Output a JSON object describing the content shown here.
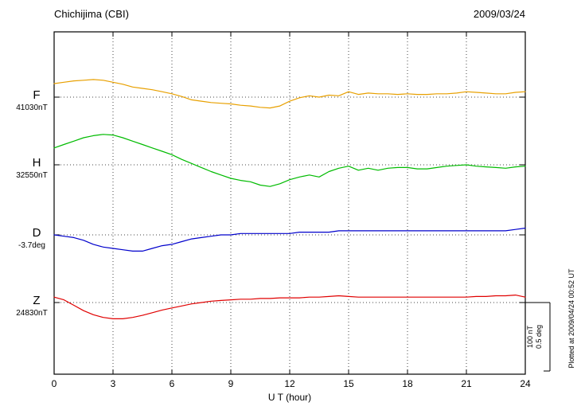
{
  "header": {
    "station": "Chichijima (CBI)",
    "date": "2009/03/24"
  },
  "axis": {
    "xlabel": "U T (hour)"
  },
  "scale_bar": {
    "line1": "100 nT",
    "line2": "0.5 deg"
  },
  "footer": {
    "plotted_at": "Plotted at 2009/04/24 00:52 UT"
  },
  "chart_data": {
    "type": "line",
    "title": "Chichijima (CBI)",
    "subtitle": "2009/03/24",
    "xlabel": "U T (hour)",
    "x_range": [
      0,
      24
    ],
    "x_ticks": [
      0,
      3,
      6,
      9,
      12,
      15,
      18,
      21,
      24
    ],
    "grid": "dotted vertical gridlines every 3 hours; dotted horizontal baseline per trace",
    "legend_position": "left margin, one colored letter + baseline value per trace",
    "scale_per_division": {
      "nT": 100,
      "deg": 0.5
    },
    "note": "dy = deviation of trace from its baseline value, in the series unit, sampled every 0.5 hour",
    "series": [
      {
        "name": "F",
        "unit": "nT",
        "baseline_label": "41030nT",
        "baseline_value": 41030,
        "color": "#e8a000",
        "units_per_div": 100,
        "x_start": 0,
        "x_step": 0.5,
        "dy": [
          20,
          22,
          24,
          25,
          26,
          25,
          22,
          19,
          15,
          13,
          11,
          8,
          5,
          1,
          -4,
          -6,
          -8,
          -9,
          -10,
          -12,
          -13,
          -15,
          -16,
          -13,
          -6,
          -1,
          2,
          0,
          3,
          2,
          8,
          4,
          6,
          5,
          5,
          4,
          5,
          4,
          4,
          5,
          5,
          6,
          8,
          7,
          6,
          5,
          5,
          7,
          8
        ]
      },
      {
        "name": "H",
        "unit": "nT",
        "baseline_label": "32550nT",
        "baseline_value": 32550,
        "color": "#00bb00",
        "units_per_div": 100,
        "x_start": 0,
        "x_step": 0.5,
        "dy": [
          25,
          30,
          35,
          40,
          43,
          45,
          44,
          40,
          35,
          30,
          25,
          20,
          15,
          8,
          2,
          -4,
          -10,
          -15,
          -20,
          -23,
          -25,
          -30,
          -32,
          -28,
          -22,
          -18,
          -15,
          -18,
          -10,
          -5,
          -2,
          -8,
          -5,
          -8,
          -5,
          -4,
          -4,
          -6,
          -6,
          -4,
          -2,
          -1,
          0,
          -2,
          -3,
          -4,
          -5,
          -3,
          -2
        ]
      },
      {
        "name": "D",
        "unit": "deg",
        "baseline_label": "-3.7deg",
        "baseline_value": -3.7,
        "color": "#0000cc",
        "units_per_div": 0.5,
        "x_start": 0,
        "x_step": 0.5,
        "dy": [
          0,
          -0.01,
          -0.02,
          -0.04,
          -0.07,
          -0.09,
          -0.1,
          -0.11,
          -0.12,
          -0.12,
          -0.1,
          -0.08,
          -0.07,
          -0.05,
          -0.03,
          -0.02,
          -0.01,
          0,
          0,
          0.01,
          0.01,
          0.01,
          0.01,
          0.01,
          0.01,
          0.02,
          0.02,
          0.02,
          0.02,
          0.03,
          0.03,
          0.03,
          0.03,
          0.03,
          0.03,
          0.03,
          0.03,
          0.03,
          0.03,
          0.03,
          0.03,
          0.03,
          0.03,
          0.03,
          0.03,
          0.03,
          0.03,
          0.04,
          0.05
        ]
      },
      {
        "name": "Z",
        "unit": "nT",
        "baseline_label": "24830nT",
        "baseline_value": 24830,
        "color": "#e00000",
        "units_per_div": 100,
        "x_start": 0,
        "x_step": 0.5,
        "dy": [
          8,
          4,
          -4,
          -12,
          -18,
          -22,
          -24,
          -24,
          -22,
          -19,
          -15,
          -11,
          -8,
          -5,
          -2,
          0,
          2,
          3,
          4,
          5,
          5,
          6,
          6,
          7,
          7,
          7,
          8,
          8,
          9,
          10,
          9,
          8,
          8,
          8,
          8,
          8,
          8,
          8,
          8,
          8,
          8,
          8,
          8,
          9,
          9,
          10,
          10,
          11,
          8
        ]
      }
    ]
  }
}
